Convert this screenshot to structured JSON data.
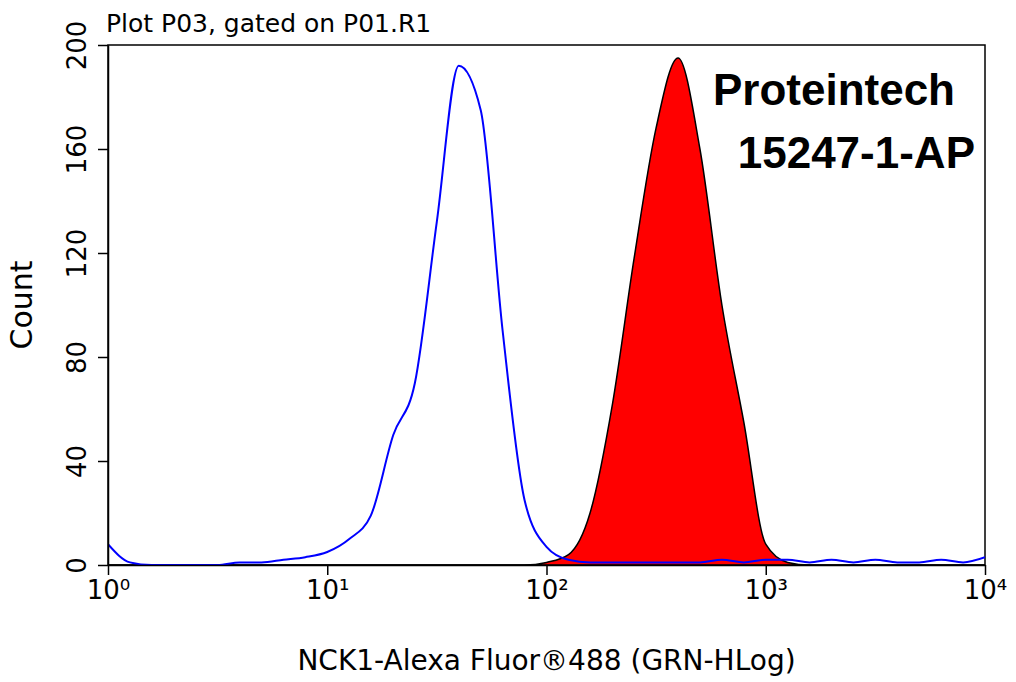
{
  "chart_data": {
    "type": "histogram",
    "title": "Plot P03, gated on P01.R1",
    "x_label": "NCK1-Alexa Fluor®488 (GRN-HLog)",
    "y_label": "Count",
    "annotations": [
      "Proteintech",
      "15247-1-AP"
    ],
    "log": "x",
    "grid": false,
    "x": [
      1,
      1.26,
      1.58,
      2,
      2.51,
      3.16,
      3.98,
      5.01,
      6.31,
      7.94,
      10,
      12.6,
      15.8,
      20,
      25.1,
      31.6,
      39.8,
      50.1,
      63.1,
      79.4,
      100,
      126,
      158,
      200,
      251,
      316,
      398,
      501,
      631,
      794,
      1000,
      1259,
      1585,
      1995,
      2512,
      3162,
      3981,
      5012,
      6310,
      7943,
      10000
    ],
    "series": [
      {
        "type": "area",
        "color": "#ff0000",
        "values": [
          0,
          0,
          0,
          0,
          0,
          0,
          0,
          0,
          0,
          0,
          0,
          0,
          0,
          0,
          0,
          0,
          0,
          0,
          0,
          0,
          1,
          4,
          20,
          62,
          118,
          168,
          195,
          160,
          100,
          55,
          8,
          1,
          0,
          0,
          0,
          0,
          0,
          0,
          0,
          0,
          0
        ]
      },
      {
        "type": "line",
        "color": "#0000ff",
        "values": [
          8,
          1,
          0,
          0,
          0,
          0,
          1,
          1,
          2,
          3,
          5,
          10,
          19,
          50,
          70,
          132,
          192,
          175,
          90,
          25,
          7,
          2,
          1,
          1,
          1,
          1,
          1,
          1,
          2,
          1,
          2,
          2,
          1,
          2,
          1,
          2,
          1,
          1,
          2,
          1,
          3
        ]
      }
    ],
    "xlim": [
      1,
      10000
    ],
    "xticks": [
      {
        "value": 1,
        "label": "10⁰"
      },
      {
        "value": 10,
        "label": "10¹"
      },
      {
        "value": 100,
        "label": "10²"
      },
      {
        "value": 1000,
        "label": "10³"
      },
      {
        "value": 10000,
        "label": "10⁴"
      }
    ],
    "ylim": [
      0,
      200
    ],
    "yticks": [
      0,
      40,
      80,
      120,
      160,
      200
    ]
  }
}
